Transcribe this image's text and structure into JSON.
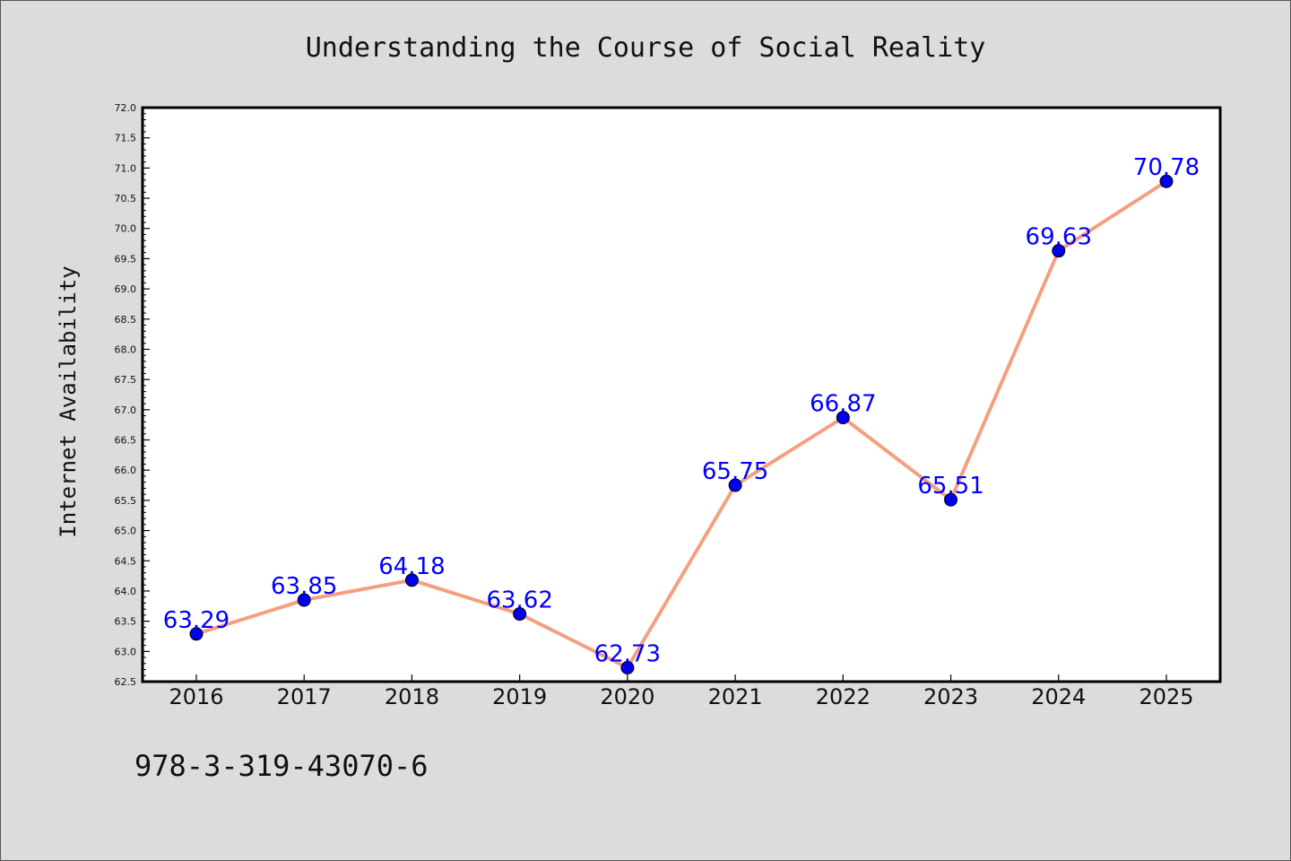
{
  "chart_data": {
    "type": "line",
    "title": "Understanding the Course of Social Reality",
    "xlabel": "",
    "ylabel": "Internet Availability",
    "categories": [
      "2016",
      "2017",
      "2018",
      "2019",
      "2020",
      "2021",
      "2022",
      "2023",
      "2024",
      "2025"
    ],
    "series": [
      {
        "values": [
          63.29,
          63.85,
          64.18,
          63.62,
          62.73,
          65.75,
          66.87,
          65.51,
          69.63,
          70.78
        ]
      }
    ],
    "data_labels": [
      "63.29",
      "63.85",
      "64.18",
      "63.62",
      "62.73",
      "65.75",
      "66.87",
      "65.51",
      "69.63",
      "70.78"
    ],
    "ylim": [
      62.5,
      72.0
    ],
    "yticks": [
      "62.5",
      "63.0",
      "63.5",
      "64.0",
      "64.5",
      "65.0",
      "65.5",
      "66.0",
      "66.5",
      "67.0",
      "67.5",
      "68.0",
      "68.5",
      "69.0",
      "69.5",
      "70.0",
      "70.5",
      "71.0",
      "71.5",
      "72.0"
    ],
    "grid": false,
    "colors": {
      "line": "#f4a07f",
      "marker": "#0000ee",
      "label": "#0000ff",
      "background": "#dcdcdc",
      "plot_background": "#ffffff"
    }
  },
  "footer_text": "978-3-319-43070-6"
}
